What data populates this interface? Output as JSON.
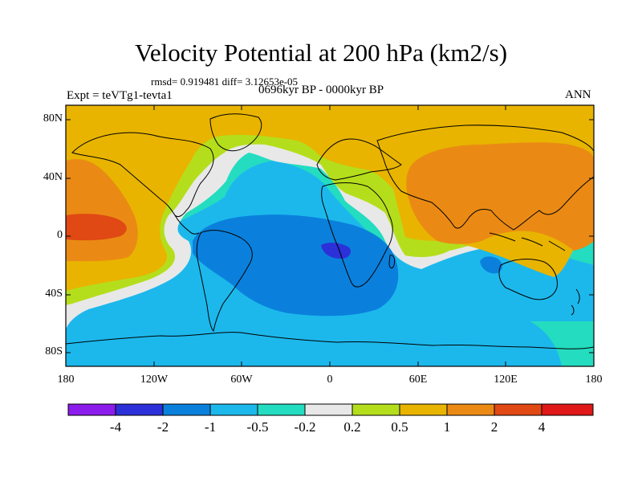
{
  "title": "Velocity Potential at 200 hPa (km2/s)",
  "rmsd_text": "rmsd= 0.919481 diff= 3.12653e-05",
  "left_label": "Expt = teVTg1-tevta1",
  "center_label": "0696kyr BP - 0000kyr BP",
  "right_label": "ANN",
  "y_ticks": [
    "80N",
    "40N",
    "0",
    "40S",
    "80S"
  ],
  "x_ticks": [
    "180",
    "120W",
    "60W",
    "0",
    "60E",
    "120E",
    "180"
  ],
  "colorbar": {
    "labels": [
      "-4",
      "-2",
      "-1",
      "-0.5",
      "-0.2",
      "0.2",
      "0.5",
      "1",
      "2",
      "4"
    ],
    "colors": [
      "#8c1cec",
      "#2c30d8",
      "#0a80dc",
      "#1cb8ec",
      "#24dcc0",
      "#e8e8e8",
      "#b4de1c",
      "#e8b400",
      "#ea8a14",
      "#e04814",
      "#e01818"
    ]
  }
}
